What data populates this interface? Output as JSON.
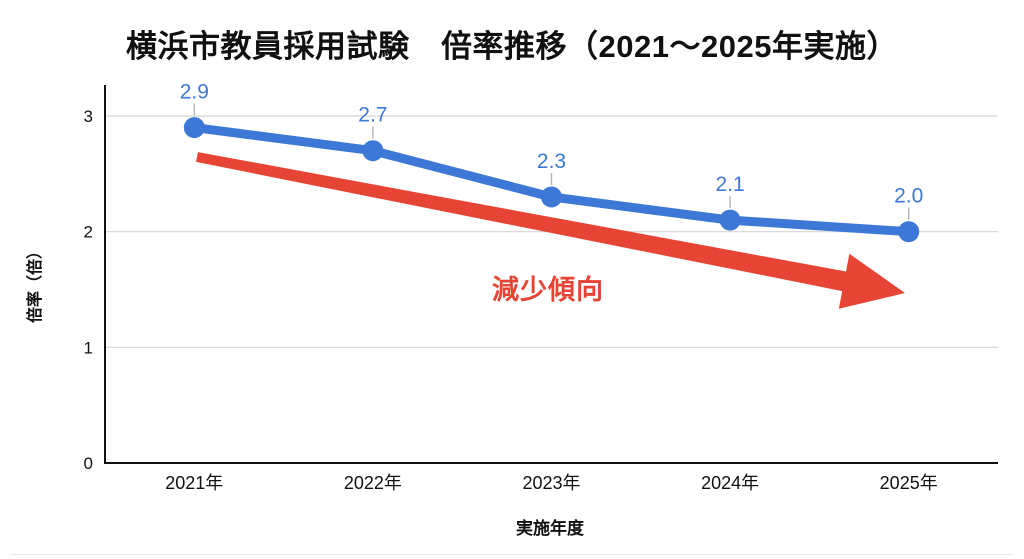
{
  "chart_data": {
    "type": "line",
    "title": "横浜市教員採用試験　倍率推移（2021〜2025年実施）",
    "xlabel": "実施年度",
    "ylabel": "倍率（倍）",
    "categories": [
      "2021年",
      "2022年",
      "2023年",
      "2024年",
      "2025年"
    ],
    "series": [
      {
        "name": "倍率",
        "values": [
          2.9,
          2.7,
          2.3,
          2.1,
          2.0
        ]
      }
    ],
    "data_labels": [
      "2.9",
      "2.7",
      "2.3",
      "2.1",
      "2.0"
    ],
    "ylim": [
      0,
      3
    ],
    "yticks": [
      0,
      1,
      2,
      3
    ],
    "grid": "horizontal",
    "legend": "none",
    "annotation": {
      "text": "減少傾向",
      "arrow": "down-right"
    },
    "colors": {
      "line": "#3d78d6",
      "marker": "#3d78d6",
      "data_label": "#3d78d6",
      "arrow": "#e64434",
      "annotation_text": "#e64434",
      "grid": "#d4d4d4",
      "axis": "#111111",
      "leader": "#b5b5b5",
      "tick_label": "#111111",
      "title": "#111111"
    }
  }
}
